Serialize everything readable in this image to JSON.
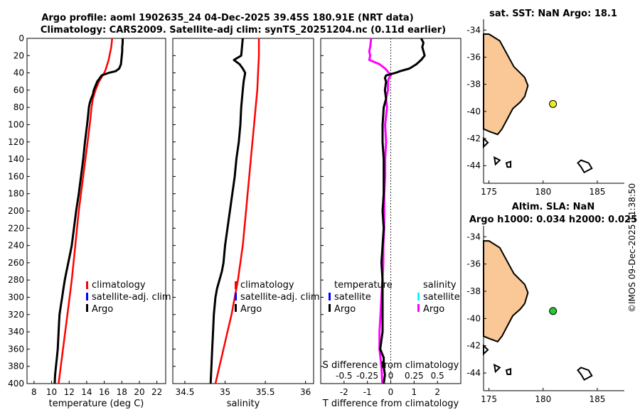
{
  "title_line1": "Argo profile: aoml 1902635_24 04-Dec-2025 39.45S 180.91E (NRT data)",
  "title_line2": "Climatology: CARS2009. Satellite-adj clim: synTS_20251204.nc (0.11d earlier)",
  "watermark": "©IMOS 09-Dec-2025 11:38:50",
  "colors": {
    "climatology": "#ff0000",
    "satellite": "#0000ff",
    "argo": "#000000",
    "salinity_argo": "#ff00ff",
    "salinity_satellite": "#00ffff",
    "land": "#f9c896",
    "argo_point_sst": "#e6ee22",
    "argo_point_sla": "#22cc33"
  },
  "depth_axis": {
    "ylim": [
      0,
      400
    ],
    "ticks": [
      0,
      20,
      40,
      60,
      80,
      100,
      120,
      140,
      160,
      180,
      200,
      220,
      240,
      260,
      280,
      300,
      320,
      340,
      360,
      380,
      400
    ]
  },
  "legend_labels": {
    "climatology": "climatology",
    "satellite": "satellite-adj. clim",
    "argo": "Argo",
    "temperature": "temperature",
    "salinity": "salinity",
    "satellite_short": "satellite"
  },
  "chart_data": [
    {
      "type": "line",
      "id": "temperature",
      "xlabel": "temperature (deg C)",
      "ylabel": "",
      "xlim": [
        7.2,
        23
      ],
      "xticks": [
        8,
        10,
        12,
        14,
        16,
        18,
        20,
        22
      ],
      "series": [
        {
          "name": "climatology",
          "depth": [
            0,
            5,
            10,
            15,
            20,
            25,
            30,
            35,
            40,
            45,
            50,
            60,
            70,
            80,
            90,
            100,
            120,
            140,
            160,
            180,
            200,
            220,
            240,
            260,
            280,
            300,
            320,
            340,
            360,
            380,
            400
          ],
          "values": [
            16.9,
            16.85,
            16.8,
            16.7,
            16.6,
            16.5,
            16.35,
            16.2,
            16,
            15.7,
            15.4,
            15,
            14.7,
            14.55,
            14.45,
            14.35,
            14.1,
            13.85,
            13.6,
            13.35,
            13.1,
            12.9,
            12.7,
            12.5,
            12.3,
            12.05,
            11.8,
            11.55,
            11.3,
            11.05,
            10.8
          ]
        },
        {
          "name": "Argo",
          "depth": [
            0,
            5,
            10,
            15,
            20,
            25,
            30,
            35,
            38,
            40,
            43,
            46,
            50,
            55,
            60,
            65,
            70,
            75,
            80,
            90,
            100,
            120,
            140,
            160,
            180,
            200,
            220,
            240,
            250,
            260,
            270,
            280,
            290,
            300,
            310,
            320,
            330,
            340,
            350,
            360,
            370,
            380,
            390,
            400
          ],
          "values": [
            18.1,
            18.1,
            18.05,
            18.05,
            18.0,
            17.95,
            17.9,
            17.7,
            17.3,
            16.5,
            15.7,
            15.5,
            15.2,
            15.0,
            14.8,
            14.7,
            14.5,
            14.35,
            14.25,
            14.15,
            14.05,
            13.8,
            13.6,
            13.35,
            13.1,
            12.8,
            12.55,
            12.3,
            12.1,
            11.9,
            11.7,
            11.5,
            11.35,
            11.2,
            11.05,
            10.9,
            10.85,
            10.8,
            10.75,
            10.7,
            10.6,
            10.5,
            10.4,
            10.35
          ]
        }
      ]
    },
    {
      "type": "line",
      "id": "salinity",
      "xlabel": "salinity",
      "ylabel": "",
      "xlim": [
        34.35,
        36.1
      ],
      "xticks": [
        34.5,
        35,
        35.5,
        36
      ],
      "series": [
        {
          "name": "climatology",
          "depth": [
            0,
            20,
            40,
            60,
            80,
            100,
            120,
            140,
            160,
            180,
            200,
            220,
            240,
            260,
            280,
            300,
            320,
            340,
            360,
            380,
            400
          ],
          "values": [
            35.42,
            35.42,
            35.41,
            35.4,
            35.38,
            35.36,
            35.34,
            35.32,
            35.3,
            35.28,
            35.26,
            35.24,
            35.22,
            35.19,
            35.16,
            35.12,
            35.08,
            35.03,
            34.98,
            34.93,
            34.88
          ]
        },
        {
          "name": "Argo",
          "depth": [
            0,
            10,
            20,
            25,
            30,
            35,
            40,
            45,
            50,
            60,
            70,
            80,
            100,
            120,
            140,
            160,
            180,
            200,
            220,
            240,
            260,
            270,
            280,
            290,
            300,
            320,
            340,
            360,
            380,
            400
          ],
          "values": [
            35.22,
            35.21,
            35.2,
            35.11,
            35.18,
            35.22,
            35.25,
            35.24,
            35.23,
            35.22,
            35.21,
            35.2,
            35.19,
            35.17,
            35.14,
            35.12,
            35.09,
            35.06,
            35.03,
            35.0,
            34.98,
            34.96,
            34.93,
            34.9,
            34.88,
            34.86,
            34.85,
            34.84,
            34.83,
            34.82
          ]
        }
      ]
    },
    {
      "type": "line",
      "id": "difference",
      "xlabel": "T difference from climatology",
      "ylabel": "",
      "xlim": [
        -3,
        3
      ],
      "xticks": [
        -2,
        -1,
        0,
        1,
        2
      ],
      "top_axis_label": "S difference from climatology",
      "top_xticks": [
        "-0.5",
        "-0.25",
        "0",
        "0.25",
        "0.5"
      ],
      "series": [
        {
          "name": "Argo T",
          "depth": [
            0,
            5,
            10,
            15,
            20,
            25,
            30,
            35,
            38,
            40,
            43,
            46,
            50,
            60,
            70,
            80,
            100,
            120,
            140,
            160,
            180,
            200,
            220,
            240,
            260,
            280,
            300,
            320,
            340,
            360,
            370,
            380,
            390,
            400
          ],
          "values": [
            1.3,
            1.4,
            1.35,
            1.4,
            1.45,
            1.3,
            1.1,
            0.8,
            0.4,
            0.2,
            -0.2,
            -0.25,
            -0.2,
            -0.25,
            -0.2,
            -0.3,
            -0.35,
            -0.35,
            -0.3,
            -0.3,
            -0.3,
            -0.35,
            -0.3,
            -0.35,
            -0.4,
            -0.35,
            -0.35,
            -0.35,
            -0.35,
            -0.45,
            -0.3,
            -0.3,
            -0.25,
            -0.3
          ]
        },
        {
          "name": "Argo S",
          "depth": [
            0,
            10,
            15,
            20,
            25,
            30,
            35,
            40,
            43,
            46,
            50,
            60,
            70,
            80,
            100,
            120,
            140,
            160,
            180,
            200,
            220,
            240,
            260,
            280,
            300,
            320,
            340,
            360,
            380,
            400
          ],
          "values": [
            -0.21,
            -0.22,
            -0.23,
            -0.22,
            -0.23,
            -0.12,
            -0.06,
            -0.02,
            0.0,
            -0.02,
            -0.03,
            -0.03,
            -0.05,
            -0.04,
            -0.06,
            -0.05,
            -0.06,
            -0.06,
            -0.07,
            -0.07,
            -0.07,
            -0.08,
            -0.08,
            -0.09,
            -0.1,
            -0.11,
            -0.12,
            -0.12,
            -0.1,
            -0.09
          ]
        }
      ]
    },
    {
      "type": "scatter",
      "id": "map_sst",
      "title": "sat. SST: NaN Argo: 18.1",
      "xlim": [
        174.5,
        187.5
      ],
      "ylim": [
        -45.3,
        -33.2
      ],
      "xticks": [
        175,
        180,
        185
      ],
      "yticks": [
        -34,
        -36,
        -38,
        -40,
        -42,
        -44
      ],
      "point": {
        "lon": 180.91,
        "lat": -39.45
      }
    },
    {
      "type": "scatter",
      "id": "map_sla",
      "title": "Altim. SLA: NaN",
      "subtitle": "Argo h1000: 0.034 h2000: 0.025",
      "xlim": [
        174.5,
        187.5
      ],
      "ylim": [
        -45.3,
        -33.2
      ],
      "xticks": [
        175,
        180,
        185
      ],
      "yticks": [
        -34,
        -36,
        -38,
        -40,
        -42,
        -44
      ],
      "point": {
        "lon": 180.91,
        "lat": -39.45
      }
    }
  ]
}
